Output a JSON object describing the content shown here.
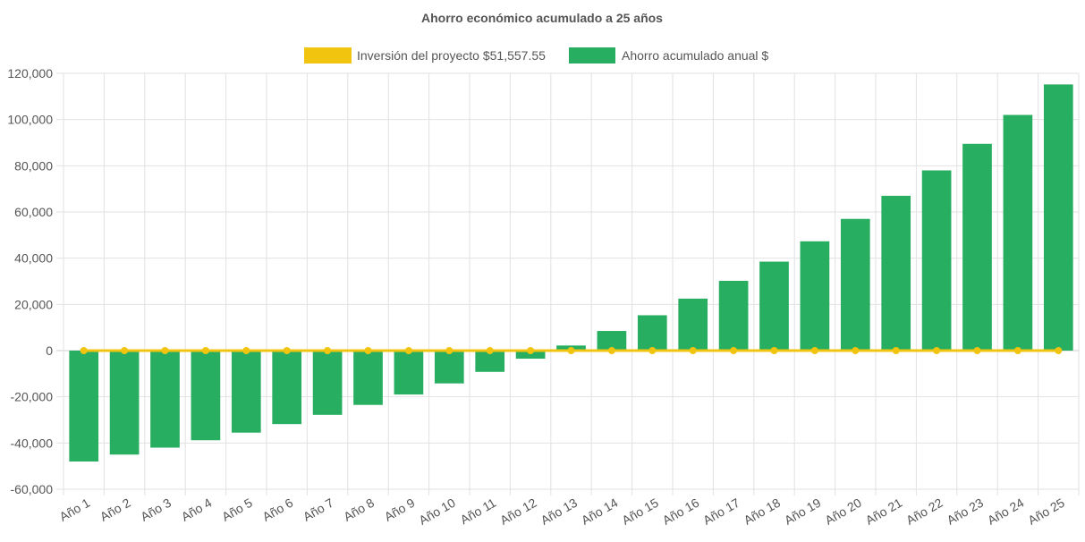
{
  "chart_data": {
    "type": "bar",
    "title": "Ahorro económico acumulado a 25 años",
    "xlabel": "",
    "ylabel": "",
    "ylim": [
      -60000,
      120000
    ],
    "yticks": [
      120000,
      100000,
      80000,
      60000,
      40000,
      20000,
      0,
      -20000,
      -40000,
      -60000
    ],
    "ytick_labels": [
      "120,000",
      "100,000",
      "80,000",
      "60,000",
      "40,000",
      "20,000",
      "0",
      "-20,000",
      "-40,000",
      "-60,000"
    ],
    "categories": [
      "Año 1",
      "Año 2",
      "Año 3",
      "Año 4",
      "Año 5",
      "Año 6",
      "Año 7",
      "Año 8",
      "Año 9",
      "Año 10",
      "Año 11",
      "Año 12",
      "Año 13",
      "Año 14",
      "Año 15",
      "Año 16",
      "Año 17",
      "Año 18",
      "Año 19",
      "Año 20",
      "Año 21",
      "Año 22",
      "Año 23",
      "Año 24",
      "Año 25"
    ],
    "grid": true,
    "legend_position": "top",
    "series": [
      {
        "name": "Inversión del proyecto $51,557.55",
        "type": "line",
        "color": "#f1c40f",
        "values": [
          0,
          0,
          0,
          0,
          0,
          0,
          0,
          0,
          0,
          0,
          0,
          0,
          0,
          0,
          0,
          0,
          0,
          0,
          0,
          0,
          0,
          0,
          0,
          0,
          0
        ]
      },
      {
        "name": "Ahorro acumulado anual $",
        "type": "bar",
        "color": "#27ae60",
        "values": [
          -48000,
          -45000,
          -42000,
          -38800,
          -35500,
          -31800,
          -27800,
          -23500,
          -19000,
          -14200,
          -9200,
          -3500,
          2200,
          8500,
          15300,
          22500,
          30200,
          38500,
          47300,
          57000,
          67000,
          78000,
          89500,
          102000,
          115200
        ]
      }
    ]
  }
}
